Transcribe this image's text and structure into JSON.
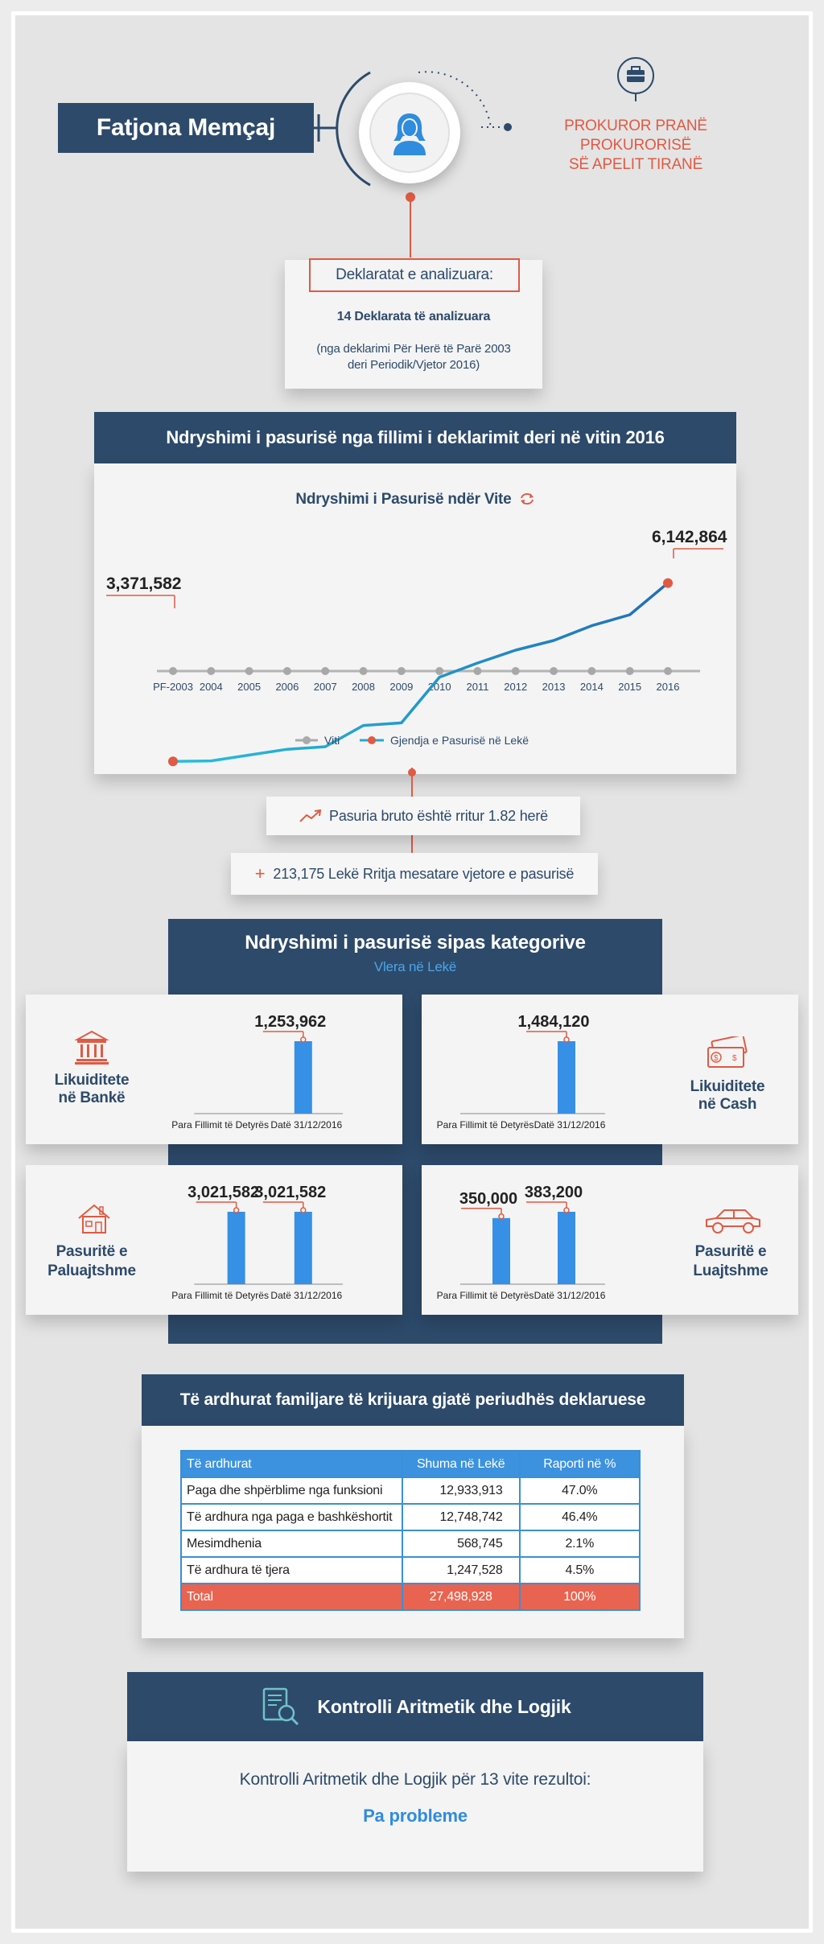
{
  "profile": {
    "name": "Fatjona Memçaj",
    "role_line1": "PROKUROR PRANË PROKURORISË",
    "role_line2": "SË APELIT TIRANË"
  },
  "declarations": {
    "heading": "Deklaratat e analizuara:",
    "count_text": "14 Deklarata të analizuara",
    "note_line1": "(nga deklarimi Për Herë të Parë 2003",
    "note_line2": "deri Periodik/Vjetor 2016)"
  },
  "wealth_section": {
    "title": "Ndryshimi i pasurisë nga fillimi i deklarimit deri në vitin 2016",
    "chart_title": "Ndryshimi i Pasurisë ndër Vite",
    "start_label": "3,371,582",
    "end_label": "6,142,864",
    "legend_years": "Viti",
    "legend_wealth": "Gjendja e Pasurisë në Lekë"
  },
  "chart_data": [
    {
      "type": "line",
      "title": "Ndryshimi i Pasurisë ndër Vite",
      "x": [
        "PF-2003",
        "2004",
        "2005",
        "2006",
        "2007",
        "2008",
        "2009",
        "2010",
        "2011",
        "2012",
        "2013",
        "2014",
        "2015",
        "2016"
      ],
      "series": [
        {
          "name": "Gjendja e Pasurisë në Lekë",
          "values": [
            3371582,
            3380000,
            3470000,
            3560000,
            3600000,
            3930000,
            3970000,
            4680000,
            4900000,
            5100000,
            5250000,
            5480000,
            5650000,
            6142864
          ]
        }
      ],
      "ylim": [
        3000000,
        7000000
      ],
      "legend": "bottom",
      "grid": false
    },
    {
      "type": "bar",
      "title": "Likuiditete në Bankë",
      "categories": [
        "Para Fillimit të Detyrës",
        "Datë 31/12/2016"
      ],
      "values": [
        0,
        1253962
      ],
      "labels": [
        "",
        "1,253,962"
      ]
    },
    {
      "type": "bar",
      "title": "Likuiditete në Cash",
      "categories": [
        "Para Fillimit të Detyrës",
        "Datë 31/12/2016"
      ],
      "values": [
        0,
        1484120
      ],
      "labels": [
        "",
        "1,484,120"
      ]
    },
    {
      "type": "bar",
      "title": "Pasuritë e Paluajtshme",
      "categories": [
        "Para Fillimit të Detyrës",
        "Datë 31/12/2016"
      ],
      "values": [
        3021582,
        3021582
      ],
      "labels": [
        "3,021,582",
        "3,021,582"
      ]
    },
    {
      "type": "bar",
      "title": "Pasuritë e Luajtshme",
      "categories": [
        "Para Fillimit të Detyrës",
        "Datë 31/12/2016"
      ],
      "values": [
        350000,
        383200
      ],
      "labels": [
        "350,000",
        "383,200"
      ]
    }
  ],
  "growth": {
    "gross_text": "Pasuria bruto është rritur 1.82 herë",
    "avg_text": "213,175 Lekë Rritja mesatare vjetore e pasurisë",
    "plus_sign": "+"
  },
  "categories_section": {
    "title": "Ndryshimi i pasurisë sipas kategorive",
    "subtitle": "Vlera në Lekë",
    "bank_line1": "Likuiditete",
    "bank_line2": "në Bankë",
    "cash_line1": "Likuiditete",
    "cash_line2": "në Cash",
    "immovable_line1": "Pasuritë e",
    "immovable_line2": "Paluajtshme",
    "movable_line1": "Pasuritë e",
    "movable_line2": "Luajtshme"
  },
  "income_section": {
    "title": "Të ardhurat familjare të krijuara gjatë periudhës deklaruese",
    "headers": [
      "Të ardhurat",
      "Shuma në Lekë",
      "Raporti në %"
    ],
    "rows": [
      [
        "Paga dhe shpërblime nga funksioni",
        "12,933,913",
        "47.0%"
      ],
      [
        "Të ardhura nga paga e bashkëshortit",
        "12,748,742",
        "46.4%"
      ],
      [
        "Mesimdhenia",
        "568,745",
        "2.1%"
      ],
      [
        "Të ardhura të tjera",
        "1,247,528",
        "4.5%"
      ]
    ],
    "total": [
      "Total",
      "27,498,928",
      "100%"
    ]
  },
  "control_section": {
    "title": "Kontrolli Aritmetik dhe Logjik",
    "text": "Kontrolli Aritmetik dhe Logjik për 13 vite rezultoi:",
    "result": "Pa probleme"
  },
  "colors": {
    "navy": "#2d4a6b",
    "accent_orange": "#e05a44",
    "accent_blue": "#2f8cde",
    "line_blue": "#1f78c0",
    "line_cyan": "#27c0dc"
  },
  "icons": [
    "person-icon",
    "briefcase-icon",
    "refresh-icon",
    "trend-up-icon",
    "bank-icon",
    "cash-icon",
    "house-icon",
    "car-icon",
    "document-search-icon"
  ]
}
